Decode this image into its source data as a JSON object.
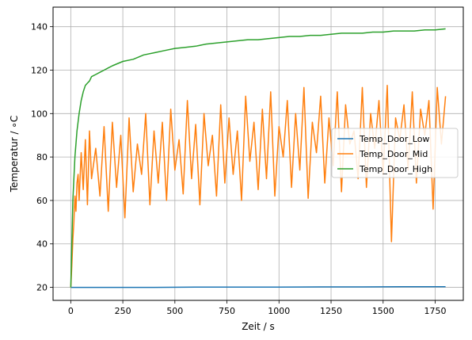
{
  "chart_data": {
    "type": "line",
    "title": "",
    "xlabel": "Zeit / s",
    "ylabel": "Temperatur / ∘C",
    "xlim": [
      -85,
      1885
    ],
    "ylim": [
      14,
      149
    ],
    "xticks": [
      0,
      250,
      500,
      750,
      1000,
      1250,
      1500,
      1750
    ],
    "yticks": [
      20,
      40,
      60,
      80,
      100,
      120,
      140
    ],
    "grid": true,
    "legend_position": "center-right",
    "series": [
      {
        "name": "Temp_Door_Low",
        "color": "#1f77b4",
        "x": [
          0,
          200,
          400,
          600,
          800,
          1000,
          1200,
          1400,
          1600,
          1800
        ],
        "y": [
          20.0,
          20.0,
          20.0,
          20.1,
          20.1,
          20.1,
          20.2,
          20.2,
          20.3,
          20.3
        ]
      },
      {
        "name": "Temp_Door_Mid",
        "color": "#ff7f0e",
        "x": [
          0,
          5,
          10,
          15,
          20,
          25,
          30,
          35,
          40,
          50,
          60,
          70,
          80,
          90,
          100,
          120,
          140,
          160,
          180,
          200,
          220,
          240,
          260,
          280,
          300,
          320,
          340,
          360,
          380,
          400,
          420,
          440,
          460,
          480,
          500,
          520,
          540,
          560,
          580,
          600,
          620,
          640,
          660,
          680,
          700,
          720,
          740,
          760,
          780,
          800,
          820,
          840,
          860,
          880,
          900,
          920,
          940,
          960,
          980,
          1000,
          1020,
          1040,
          1060,
          1080,
          1100,
          1120,
          1140,
          1160,
          1180,
          1200,
          1220,
          1240,
          1260,
          1280,
          1300,
          1320,
          1340,
          1360,
          1380,
          1400,
          1420,
          1440,
          1460,
          1480,
          1500,
          1520,
          1540,
          1560,
          1580,
          1600,
          1620,
          1640,
          1660,
          1680,
          1700,
          1720,
          1740,
          1760,
          1780,
          1800
        ],
        "y": [
          20,
          30,
          42,
          50,
          62,
          55,
          68,
          72,
          60,
          82,
          65,
          88,
          58,
          92,
          70,
          84,
          62,
          94,
          55,
          96,
          66,
          90,
          52,
          98,
          64,
          86,
          72,
          100,
          58,
          92,
          68,
          96,
          60,
          102,
          74,
          88,
          63,
          106,
          70,
          95,
          58,
          100,
          76,
          90,
          62,
          104,
          68,
          98,
          72,
          92,
          60,
          108,
          78,
          96,
          65,
          102,
          70,
          110,
          62,
          94,
          80,
          106,
          66,
          100,
          74,
          112,
          61,
          96,
          82,
          108,
          68,
          98,
          76,
          110,
          64,
          104,
          86,
          92,
          70,
          112,
          66,
          100,
          84,
          106,
          72,
          113,
          41,
          98,
          88,
          104,
          74,
          110,
          68,
          102,
          90,
          106,
          56,
          112,
          86,
          108
        ]
      },
      {
        "name": "Temp_Door_High",
        "color": "#2ca02c",
        "x": [
          0,
          10,
          20,
          30,
          40,
          50,
          60,
          70,
          80,
          90,
          100,
          120,
          140,
          160,
          180,
          200,
          250,
          300,
          350,
          400,
          450,
          500,
          550,
          600,
          650,
          700,
          750,
          800,
          850,
          900,
          950,
          1000,
          1050,
          1100,
          1150,
          1200,
          1250,
          1300,
          1350,
          1400,
          1450,
          1500,
          1550,
          1600,
          1650,
          1700,
          1750,
          1800
        ],
        "y": [
          20,
          60,
          80,
          92,
          100,
          106,
          110,
          113,
          114,
          115,
          117,
          118,
          119,
          120,
          121,
          122,
          124,
          125,
          127,
          128,
          129,
          130,
          130.5,
          131,
          132,
          132.5,
          133,
          133.5,
          134,
          134,
          134.5,
          135,
          135.5,
          135.5,
          136,
          136,
          136.5,
          137,
          137,
          137,
          137.5,
          137.5,
          138,
          138,
          138,
          138.5,
          138.5,
          139
        ]
      }
    ]
  }
}
